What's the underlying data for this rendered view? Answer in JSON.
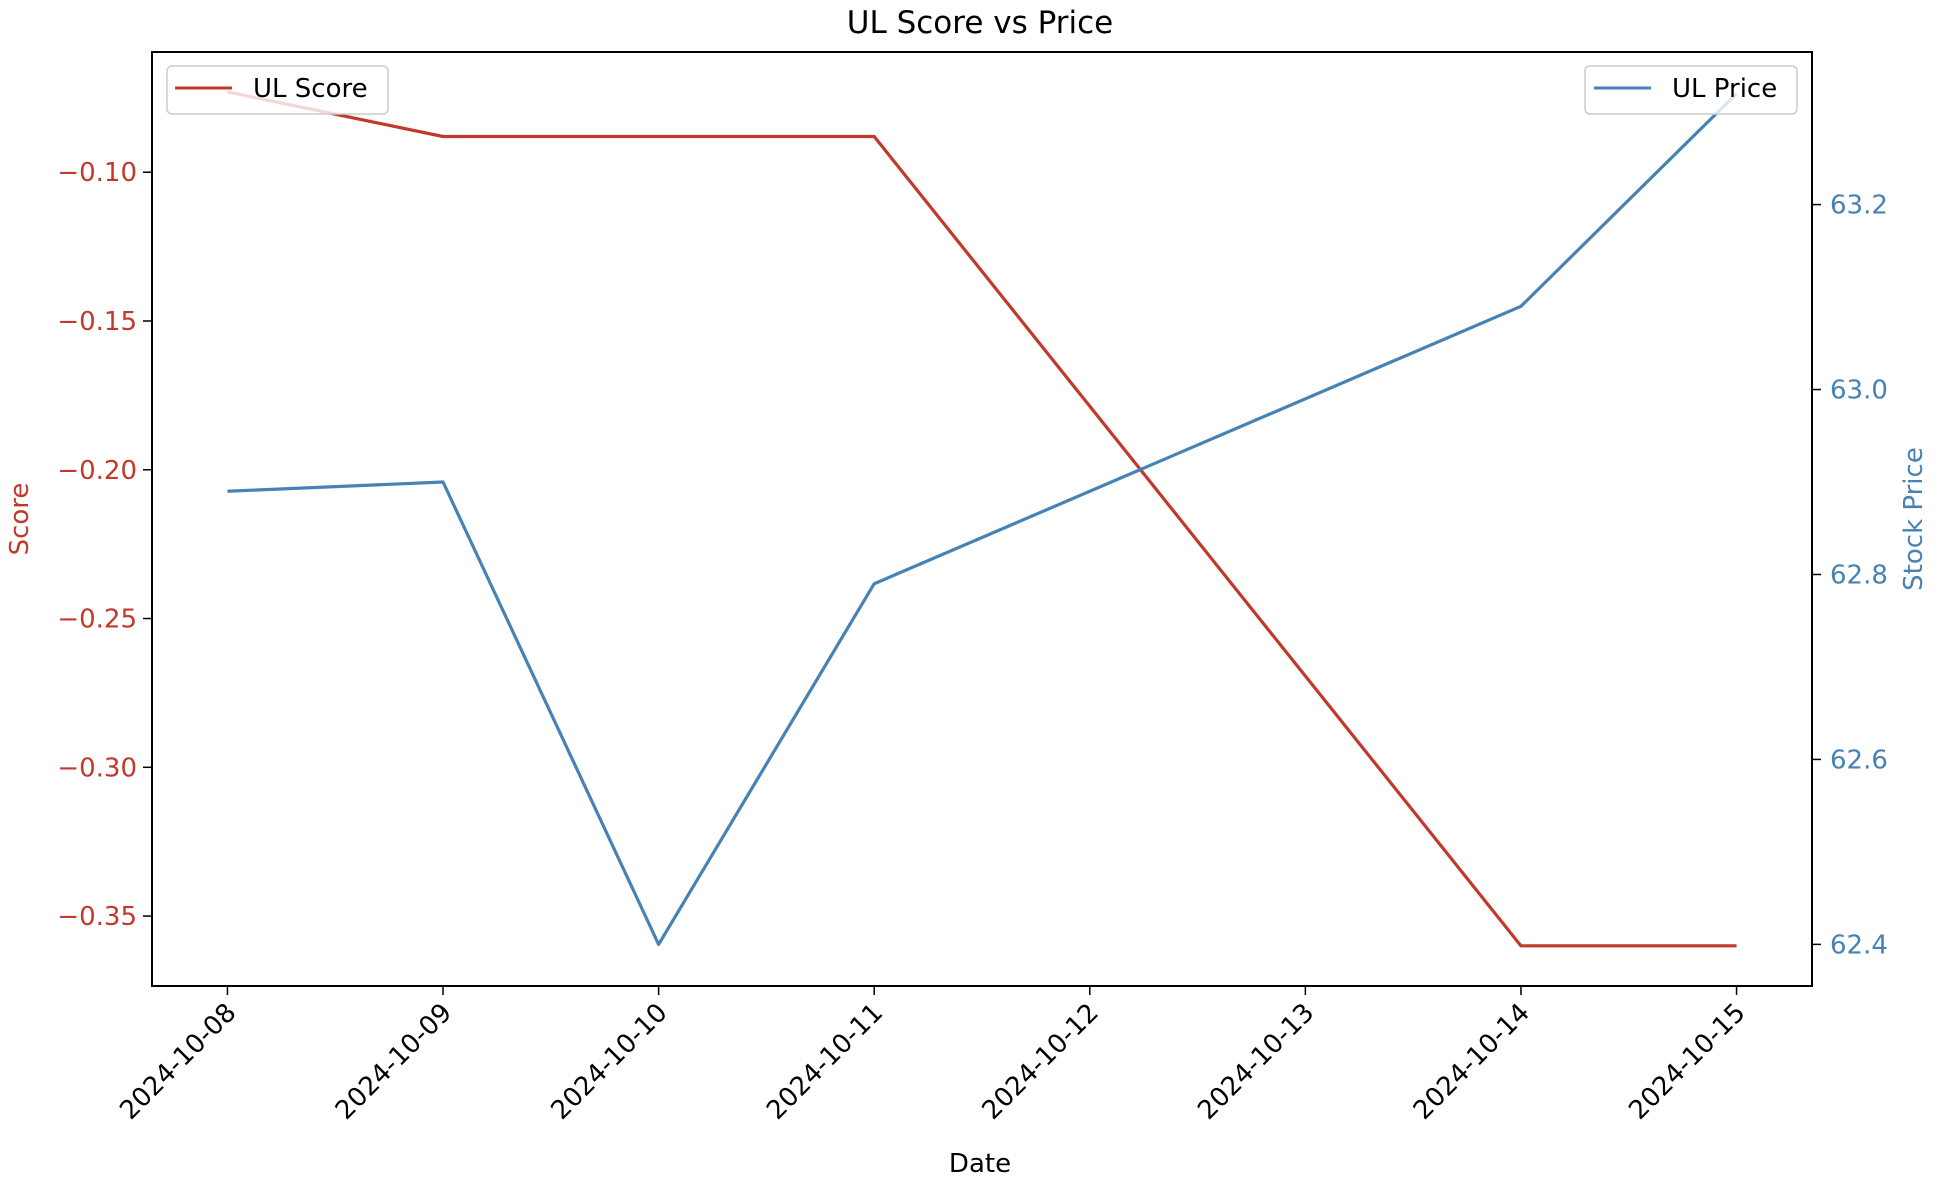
{
  "chart_data": {
    "type": "line",
    "title": "UL Score vs Price",
    "xlabel": "Date",
    "x": [
      "2024-10-08",
      "2024-10-09",
      "2024-10-10",
      "2024-10-11",
      "2024-10-12",
      "2024-10-13",
      "2024-10-14",
      "2024-10-15"
    ],
    "x_ticks": [
      "2024-10-08",
      "2024-10-09",
      "2024-10-10",
      "2024-10-11",
      "2024-10-12",
      "2024-10-13",
      "2024-10-14",
      "2024-10-15"
    ],
    "y_left": {
      "label": "Score",
      "color": "#c0392b",
      "ylim": [
        -0.3735,
        -0.0596
      ],
      "ticks": [
        -0.1,
        -0.15,
        -0.2,
        -0.25,
        -0.3,
        -0.35
      ],
      "tick_labels": [
        "−0.10",
        "−0.15",
        "−0.20",
        "−0.25",
        "−0.30",
        "−0.35"
      ]
    },
    "y_right": {
      "label": "Stock Price",
      "color": "#4682b4",
      "ylim": [
        62.355,
        63.365
      ],
      "ticks": [
        62.4,
        62.6,
        62.8,
        63.0,
        63.2
      ],
      "tick_labels": [
        "62.4",
        "62.6",
        "62.8",
        "63.0",
        "63.2"
      ]
    },
    "series": [
      {
        "name": "UL Score",
        "axis": "left",
        "color": "#c0392b",
        "points": [
          {
            "x": "2024-10-08",
            "y": -0.073
          },
          {
            "x": "2024-10-09",
            "y": -0.088
          },
          {
            "x": "2024-10-11",
            "y": -0.088
          },
          {
            "x": "2024-10-14",
            "y": -0.36
          },
          {
            "x": "2024-10-15",
            "y": -0.36
          }
        ]
      },
      {
        "name": "UL Price",
        "axis": "right",
        "color": "#4682b4",
        "points": [
          {
            "x": "2024-10-08",
            "y": 62.89
          },
          {
            "x": "2024-10-09",
            "y": 62.9
          },
          {
            "x": "2024-10-10",
            "y": 62.4
          },
          {
            "x": "2024-10-11",
            "y": 62.79
          },
          {
            "x": "2024-10-14",
            "y": 63.09
          },
          {
            "x": "2024-10-15",
            "y": 63.32
          }
        ]
      }
    ],
    "legends": [
      {
        "entries": [
          "UL Score"
        ],
        "placement": "upper-left"
      },
      {
        "entries": [
          "UL Price"
        ],
        "placement": "upper-right"
      }
    ],
    "grid": false
  }
}
